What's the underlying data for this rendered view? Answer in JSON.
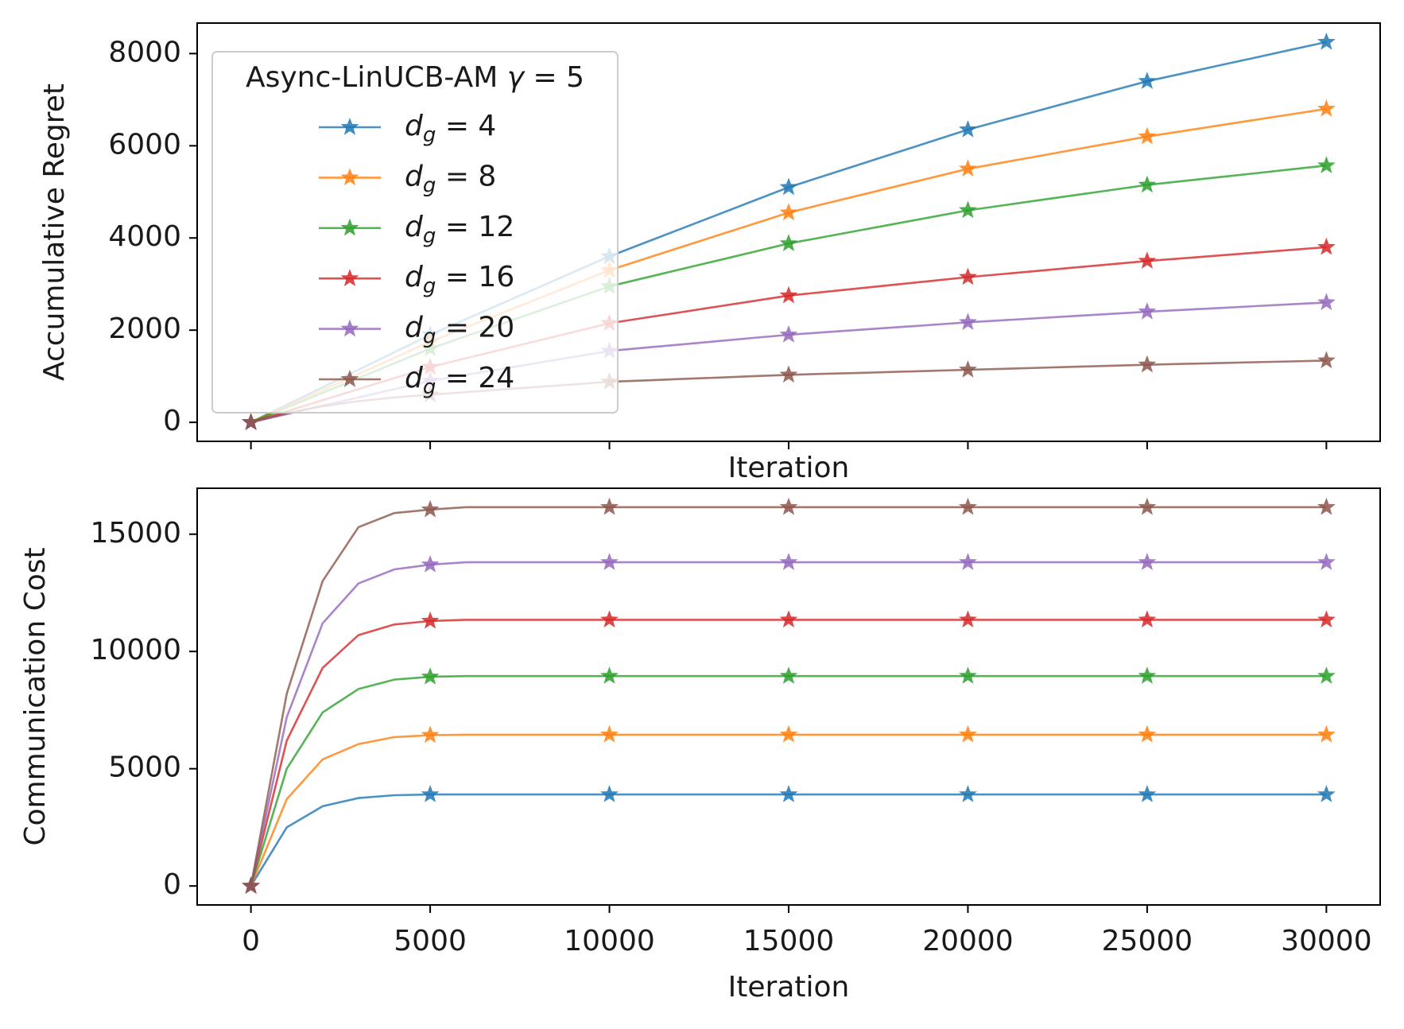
{
  "chart_data": [
    {
      "type": "line",
      "xlabel": "Iteration",
      "ylabel": "Accumulative Regret",
      "legend": "upper left",
      "legend_title": "Async-LinUCB-AM γ = 5",
      "marker": "*",
      "markevery": 5,
      "show_xtick_labels": false,
      "xlim": [
        -1500,
        31500
      ],
      "ylim": [
        -412,
        8662
      ],
      "xticks": [
        0,
        5000,
        10000,
        15000,
        20000,
        25000,
        30000
      ],
      "yticks": [
        0,
        2000,
        4000,
        6000,
        8000
      ],
      "x": [
        0,
        1000,
        2000,
        3000,
        4000,
        5000,
        6000,
        7000,
        8000,
        9000,
        10000,
        11000,
        12000,
        13000,
        14000,
        15000,
        16000,
        17000,
        18000,
        19000,
        20000,
        21000,
        22000,
        23000,
        24000,
        25000,
        26000,
        27000,
        28000,
        29000,
        30000
      ],
      "series": [
        {
          "name": "dg = 4",
          "color": "#1f77b4",
          "values": [
            0,
            380,
            760,
            1140,
            1520,
            1900,
            2240,
            2580,
            2920,
            3260,
            3600,
            3900,
            4200,
            4500,
            4800,
            5100,
            5350,
            5600,
            5850,
            6100,
            6350,
            6560,
            6770,
            6980,
            7190,
            7400,
            7570,
            7740,
            7910,
            8080,
            8250
          ]
        },
        {
          "name": "dg = 8",
          "color": "#ff7f0e",
          "values": [
            0,
            350,
            700,
            1050,
            1400,
            1750,
            2060,
            2370,
            2680,
            2990,
            3300,
            3550,
            3800,
            4050,
            4300,
            4550,
            4740,
            4930,
            5120,
            5310,
            5500,
            5640,
            5780,
            5920,
            6060,
            6200,
            6320,
            6440,
            6560,
            6680,
            6800
          ]
        },
        {
          "name": "dg = 12",
          "color": "#2ca02c",
          "values": [
            0,
            320,
            640,
            960,
            1280,
            1600,
            1870,
            2140,
            2410,
            2680,
            2950,
            3136,
            3322,
            3508,
            3694,
            3880,
            4024,
            4168,
            4312,
            4456,
            4600,
            4710,
            4820,
            4930,
            5040,
            5150,
            5234,
            5318,
            5402,
            5486,
            5570
          ]
        },
        {
          "name": "dg = 16",
          "color": "#d62728",
          "values": [
            0,
            240,
            480,
            720,
            960,
            1200,
            1390,
            1580,
            1770,
            1960,
            2150,
            2270,
            2390,
            2510,
            2630,
            2750,
            2830,
            2910,
            2990,
            3070,
            3150,
            3220,
            3290,
            3360,
            3430,
            3500,
            3560,
            3620,
            3680,
            3740,
            3800
          ]
        },
        {
          "name": "dg = 20",
          "color": "#9467bd",
          "values": [
            0,
            180,
            360,
            540,
            720,
            900,
            1030,
            1160,
            1290,
            1420,
            1550,
            1620,
            1690,
            1760,
            1830,
            1900,
            1954,
            2008,
            2062,
            2116,
            2170,
            2216,
            2262,
            2308,
            2354,
            2400,
            2440,
            2480,
            2520,
            2560,
            2600
          ]
        },
        {
          "name": "dg = 24",
          "color": "#8c564b",
          "values": [
            0,
            200,
            350,
            460,
            540,
            600,
            656,
            712,
            768,
            824,
            880,
            910,
            940,
            970,
            1000,
            1030,
            1052,
            1074,
            1096,
            1118,
            1140,
            1162,
            1184,
            1206,
            1228,
            1250,
            1268,
            1286,
            1304,
            1322,
            1340
          ]
        }
      ]
    },
    {
      "type": "line",
      "xlabel": "Iteration",
      "ylabel": "Communication Cost",
      "marker": "*",
      "markevery": 5,
      "show_xtick_labels": true,
      "xlim": [
        -1500,
        31500
      ],
      "ylim": [
        -808,
        16958
      ],
      "xticks": [
        0,
        5000,
        10000,
        15000,
        20000,
        25000,
        30000
      ],
      "yticks": [
        0,
        5000,
        10000,
        15000
      ],
      "x": [
        0,
        1000,
        2000,
        3000,
        4000,
        5000,
        6000,
        7000,
        8000,
        9000,
        10000,
        11000,
        12000,
        13000,
        14000,
        15000,
        16000,
        17000,
        18000,
        19000,
        20000,
        21000,
        22000,
        23000,
        24000,
        25000,
        26000,
        27000,
        28000,
        29000,
        30000
      ],
      "series": [
        {
          "color": "#1f77b4",
          "values": [
            0,
            2500,
            3400,
            3750,
            3870,
            3900,
            3900,
            3900,
            3900,
            3900,
            3900,
            3900,
            3900,
            3900,
            3900,
            3900,
            3900,
            3900,
            3900,
            3900,
            3900,
            3900,
            3900,
            3900,
            3900,
            3900,
            3900,
            3900,
            3900,
            3900,
            3900
          ]
        },
        {
          "color": "#ff7f0e",
          "values": [
            0,
            3700,
            5400,
            6050,
            6350,
            6430,
            6450,
            6450,
            6450,
            6450,
            6450,
            6450,
            6450,
            6450,
            6450,
            6450,
            6450,
            6450,
            6450,
            6450,
            6450,
            6450,
            6450,
            6450,
            6450,
            6450,
            6450,
            6450,
            6450,
            6450,
            6450
          ]
        },
        {
          "color": "#2ca02c",
          "values": [
            0,
            5000,
            7400,
            8400,
            8800,
            8920,
            8950,
            8950,
            8950,
            8950,
            8950,
            8950,
            8950,
            8950,
            8950,
            8950,
            8950,
            8950,
            8950,
            8950,
            8950,
            8950,
            8950,
            8950,
            8950,
            8950,
            8950,
            8950,
            8950,
            8950,
            8950
          ]
        },
        {
          "color": "#d62728",
          "values": [
            0,
            6200,
            9300,
            10700,
            11150,
            11300,
            11350,
            11350,
            11350,
            11350,
            11350,
            11350,
            11350,
            11350,
            11350,
            11350,
            11350,
            11350,
            11350,
            11350,
            11350,
            11350,
            11350,
            11350,
            11350,
            11350,
            11350,
            11350,
            11350,
            11350,
            11350
          ]
        },
        {
          "color": "#9467bd",
          "values": [
            0,
            7200,
            11200,
            12900,
            13500,
            13700,
            13800,
            13800,
            13800,
            13800,
            13800,
            13800,
            13800,
            13800,
            13800,
            13800,
            13800,
            13800,
            13800,
            13800,
            13800,
            13800,
            13800,
            13800,
            13800,
            13800,
            13800,
            13800,
            13800,
            13800,
            13800
          ]
        },
        {
          "color": "#8c564b",
          "values": [
            0,
            8200,
            13000,
            15300,
            15900,
            16050,
            16150,
            16150,
            16150,
            16150,
            16150,
            16150,
            16150,
            16150,
            16150,
            16150,
            16150,
            16150,
            16150,
            16150,
            16150,
            16150,
            16150,
            16150,
            16150,
            16150,
            16150,
            16150,
            16150,
            16150,
            16150
          ]
        }
      ]
    }
  ]
}
